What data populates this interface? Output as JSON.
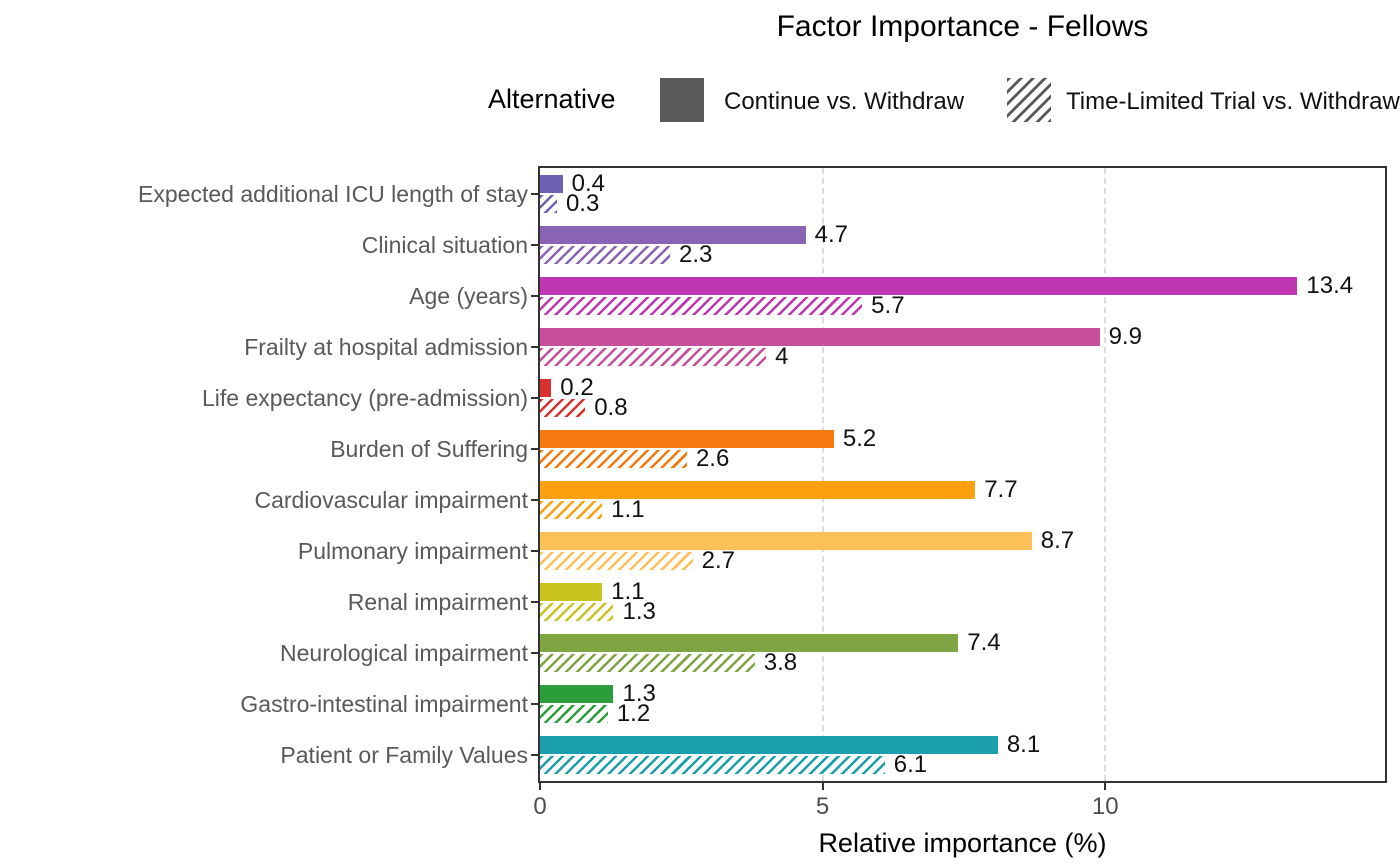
{
  "chart": {
    "title": "Factor Importance - Fellows",
    "xlabel": "Relative importance (%)",
    "legend": {
      "title": "Alternative",
      "items": [
        {
          "label": "Continue vs. Withdraw",
          "style": "solid"
        },
        {
          "label": "Time-Limited Trial vs. Withdraw",
          "style": "hatched"
        }
      ]
    }
  },
  "chart_data": {
    "type": "bar",
    "orientation": "horizontal",
    "title": "Factor Importance - Fellows",
    "xlabel": "Relative importance (%)",
    "ylabel": "",
    "x_ticks": [
      0,
      5,
      10
    ],
    "x_max": 14.95,
    "grid": "vertical dashed gridlines at x ticks",
    "legend_position": "top-center",
    "legend_title": "Alternative",
    "series": [
      {
        "name": "Continue vs. Withdraw",
        "pattern": "solid"
      },
      {
        "name": "Time-Limited Trial vs. Withdraw",
        "pattern": "hatched"
      }
    ],
    "rows": [
      {
        "category": "Expected additional ICU length of stay",
        "color": "#6e60b5",
        "continue": 0.4,
        "continue_label": "0.4",
        "tlt": 0.3,
        "tlt_label": "0.3"
      },
      {
        "category": "Clinical situation",
        "color": "#8a64b4",
        "continue": 4.7,
        "continue_label": "4.7",
        "tlt": 2.3,
        "tlt_label": "2.3"
      },
      {
        "category": "Age (years)",
        "color": "#bf36b2",
        "continue": 13.4,
        "continue_label": "13.4",
        "tlt": 5.7,
        "tlt_label": "5.7"
      },
      {
        "category": "Frailty at hospital admission",
        "color": "#c74f9b",
        "continue": 9.9,
        "continue_label": "9.9",
        "tlt": 4,
        "tlt_label": "4"
      },
      {
        "category": "Life expectancy (pre-admission)",
        "color": "#d7322d",
        "continue": 0.2,
        "continue_label": "0.2",
        "tlt": 0.8,
        "tlt_label": "0.8"
      },
      {
        "category": "Burden of Suffering",
        "color": "#f5790e",
        "continue": 5.2,
        "continue_label": "5.2",
        "tlt": 2.6,
        "tlt_label": "2.6"
      },
      {
        "category": "Cardiovascular impairment",
        "color": "#fba00e",
        "continue": 7.7,
        "continue_label": "7.7",
        "tlt": 1.1,
        "tlt_label": "1.1"
      },
      {
        "category": "Pulmonary impairment",
        "color": "#fbc057",
        "continue": 8.7,
        "continue_label": "8.7",
        "tlt": 2.7,
        "tlt_label": "2.7"
      },
      {
        "category": "Renal impairment",
        "color": "#c9c21f",
        "continue": 1.1,
        "continue_label": "1.1",
        "tlt": 1.3,
        "tlt_label": "1.3"
      },
      {
        "category": "Neurological impairment",
        "color": "#7ea542",
        "continue": 7.4,
        "continue_label": "7.4",
        "tlt": 3.8,
        "tlt_label": "3.8"
      },
      {
        "category": "Gastro-intestinal impairment",
        "color": "#2b9e3a",
        "continue": 1.3,
        "continue_label": "1.3",
        "tlt": 1.2,
        "tlt_label": "1.2"
      },
      {
        "category": "Patient or Family Values",
        "color": "#1b9fad",
        "continue": 8.1,
        "continue_label": "8.1",
        "tlt": 6.1,
        "tlt_label": "6.1"
      }
    ],
    "colors": {
      "legend_swatch": "#595959",
      "grid": "#dcdcdc",
      "panel_border": "#333333",
      "category_label": "#595959",
      "tick_label": "#4d4d4d",
      "value_label": "#111111",
      "background": "#ffffff"
    }
  }
}
